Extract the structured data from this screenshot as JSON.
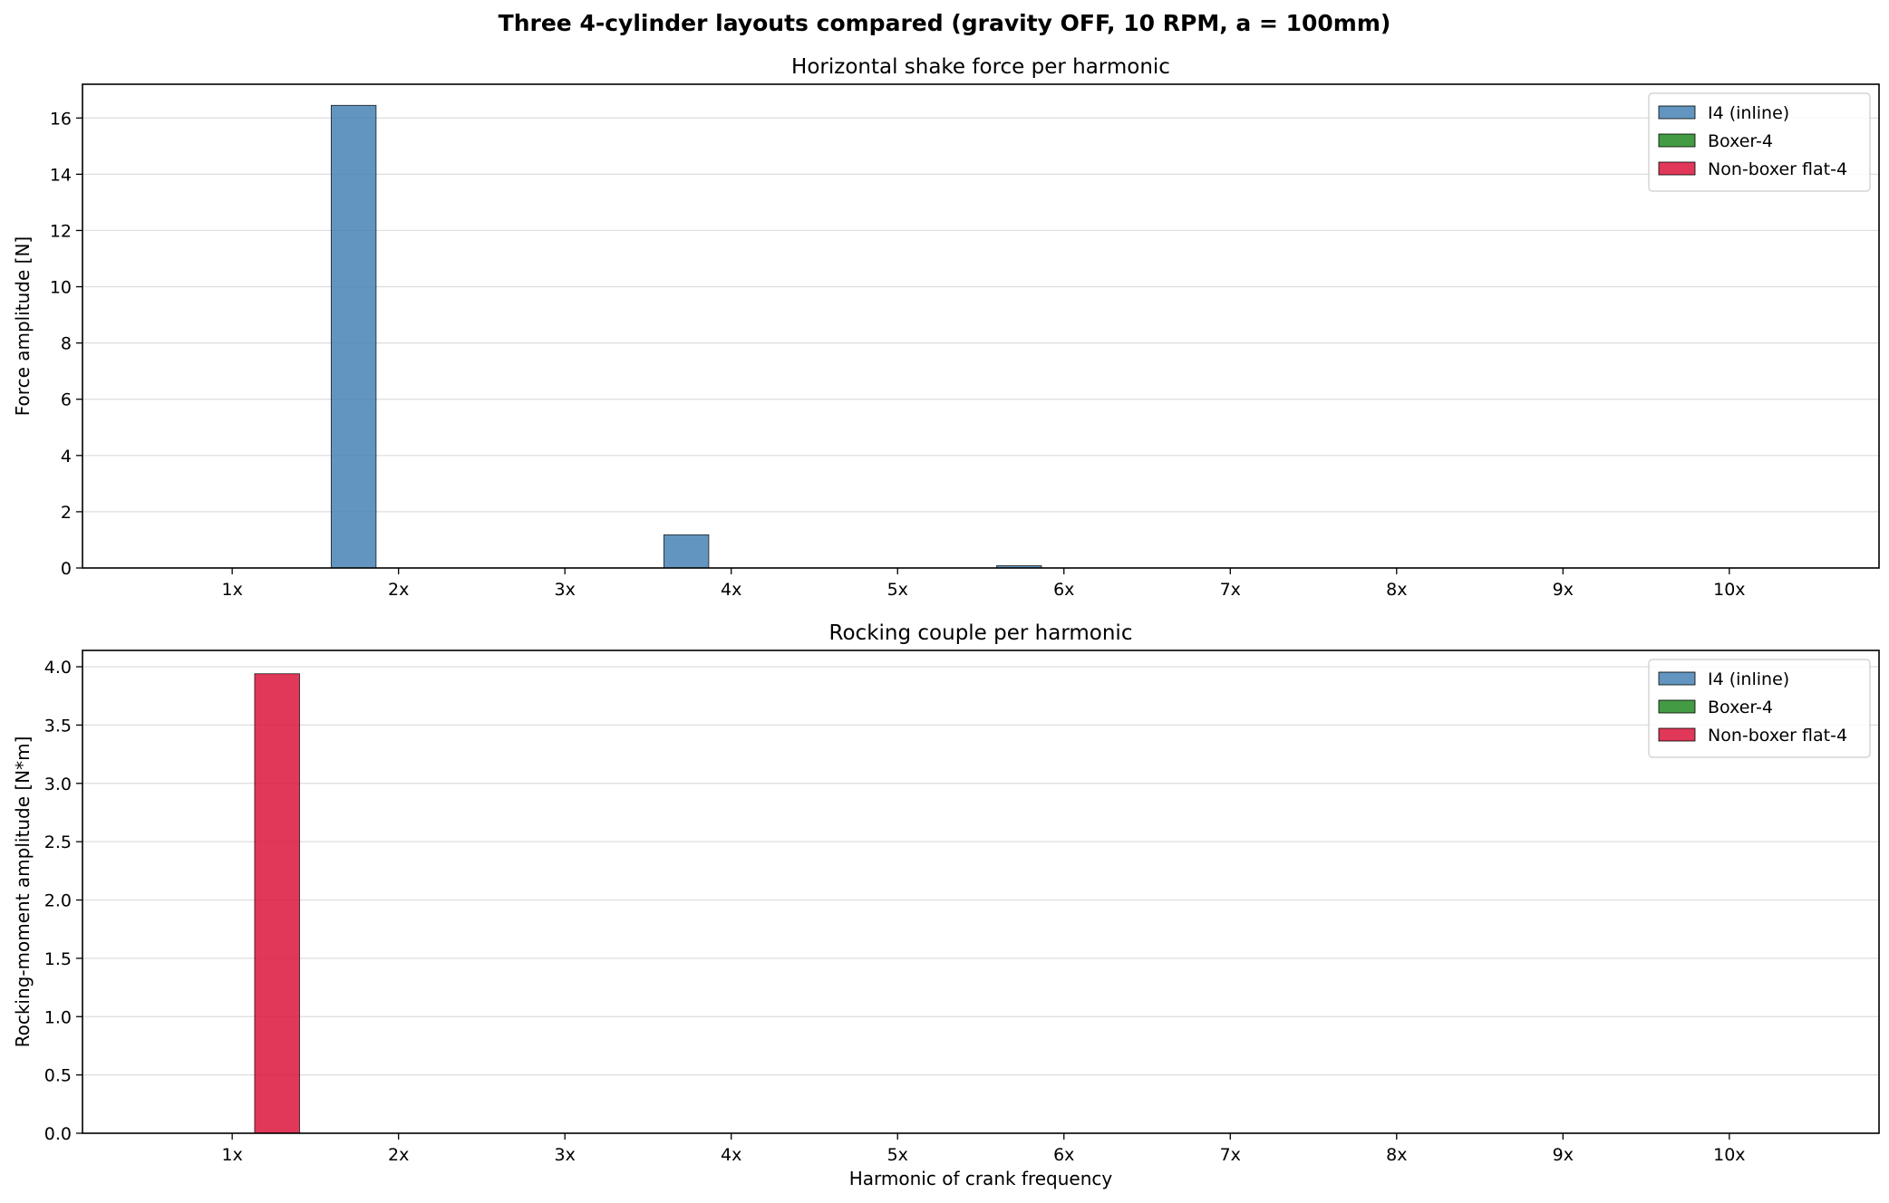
{
  "figure": {
    "suptitle": "Three 4-cylinder layouts compared (gravity OFF, 10 RPM, a = 100mm)"
  },
  "chart_data": [
    {
      "type": "bar",
      "title": "Horizontal shake force per harmonic",
      "xlabel": "",
      "ylabel": "Force amplitude [N]",
      "categories": [
        "1x",
        "2x",
        "3x",
        "4x",
        "5x",
        "6x",
        "7x",
        "8x",
        "9x",
        "10x"
      ],
      "ylim": [
        0,
        17.2
      ],
      "yticks": [
        0,
        2,
        4,
        6,
        8,
        10,
        12,
        14,
        16
      ],
      "ytick_labels": [
        "0",
        "2",
        "4",
        "6",
        "8",
        "10",
        "12",
        "14",
        "16"
      ],
      "grid": "y",
      "legend_position": "top-right",
      "series": [
        {
          "name": "I4 (inline)",
          "color": "#4682b4",
          "values": [
            0,
            16.45,
            0,
            1.18,
            0,
            0.08,
            0,
            0,
            0,
            0
          ]
        },
        {
          "name": "Boxer-4",
          "color": "#228b22",
          "values": [
            0,
            0,
            0,
            0,
            0,
            0,
            0,
            0,
            0,
            0
          ]
        },
        {
          "name": "Non-boxer flat-4",
          "color": "#dc143c",
          "values": [
            0,
            0,
            0,
            0,
            0,
            0,
            0,
            0,
            0,
            0
          ]
        }
      ]
    },
    {
      "type": "bar",
      "title": "Rocking couple per harmonic",
      "xlabel": "Harmonic of crank frequency",
      "ylabel": "Rocking-moment amplitude [N*m]",
      "categories": [
        "1x",
        "2x",
        "3x",
        "4x",
        "5x",
        "6x",
        "7x",
        "8x",
        "9x",
        "10x"
      ],
      "ylim": [
        0,
        4.14
      ],
      "yticks": [
        0,
        0.5,
        1,
        1.5,
        2,
        2.5,
        3,
        3.5,
        4
      ],
      "ytick_labels": [
        "0.0",
        "0.5",
        "1.0",
        "1.5",
        "2.0",
        "2.5",
        "3.0",
        "3.5",
        "4.0"
      ],
      "grid": "y",
      "legend_position": "top-right",
      "series": [
        {
          "name": "I4 (inline)",
          "color": "#4682b4",
          "values": [
            0,
            0,
            0,
            0,
            0,
            0,
            0,
            0,
            0,
            0
          ]
        },
        {
          "name": "Boxer-4",
          "color": "#228b22",
          "values": [
            0,
            0,
            0,
            0,
            0,
            0,
            0,
            0,
            0,
            0
          ]
        },
        {
          "name": "Non-boxer flat-4",
          "color": "#dc143c",
          "values": [
            3.94,
            0,
            0,
            0,
            0,
            0,
            0,
            0,
            0,
            0
          ]
        }
      ]
    }
  ]
}
